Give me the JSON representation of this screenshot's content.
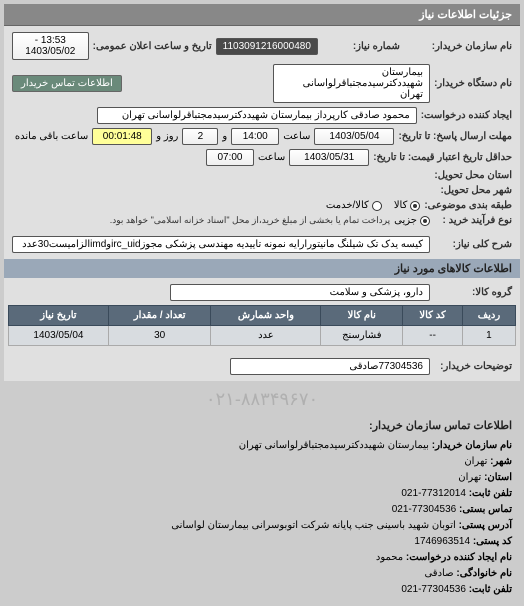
{
  "header": "جزئیات اطلاعات نیاز",
  "fields": {
    "buyer_name_label": "نام سازمان خریدار:",
    "device_name_label": "نام دستگاه خریدار:",
    "creator_label": "ایجاد کننده درخواست:",
    "send_deadline_label": "مهلت ارسال پاسخ: تا تاریخ:",
    "credit_deadline_label": "حداقل تاریخ اعتبار قیمت: تا تاریخ:",
    "delivery_province_label": "استان محل تحویل:",
    "delivery_city_label": "شهر محل تحویل:",
    "category_label": "طبقه بندی موضوعی:",
    "purchase_type_label": "نوع فرآیند خرید :",
    "need_number_label": "شماره نیاز:",
    "need_number": "1103091216000480",
    "public_date_label": "تاریخ و ساعت اعلان عمومی:",
    "public_date": "13:53 - 1403/05/02",
    "device_name": "بیمارستان شهیددکترسیدمجتباقرلواسانی تهران",
    "contact_btn": "اطلاعات تماس خریدار",
    "creator": "محمود صادقی  کارپرداز بیمارستان شهیددکترسیدمجتباقرلواسانی تهران",
    "send_date": "1403/05/04",
    "send_time_label": "ساعت",
    "send_time": "14:00",
    "and_label": "و",
    "days": "2",
    "days_label": "روز و",
    "countdown": "00:01:48",
    "remaining_label": "ساعت باقی مانده",
    "credit_date": "1403/05/31",
    "credit_time": "07:00",
    "goods_radio": "کالا",
    "service_radio": "کالا/خدمت",
    "retail_radio": "جزیی",
    "purchase_note": "پرداخت تمام یا بخشی از مبلغ خرید،از محل \"اسناد خزانه اسلامی\" خواهد بود.",
    "need_title_label": "شرح کلی نیاز:",
    "need_title": "کیسه یدک تک شیلنگ مانیتورارایه نمونه تاییدیه مهندسی پزشکی مجوزirc_uidوimdالزامیست30عدد",
    "goods_info_title": "اطلاعات کالاهای مورد نیاز",
    "goods_group_label": "گروه کالا:",
    "goods_group": "دارو، پزشکی و سلامت"
  },
  "table": {
    "columns": [
      "ردیف",
      "کد کالا",
      "نام کالا",
      "واحد شمارش",
      "تعداد / مقدار",
      "تاریخ نیاز"
    ],
    "rows": [
      [
        "1",
        "--",
        "فشارسنج",
        "عدد",
        "30",
        "1403/05/04"
      ]
    ]
  },
  "buyer_desc_label": "توضیحات خریدار:",
  "buyer_desc": "77304536صادقی",
  "watermark": "۰۲۱-۸۸۳۴۹۶۷۰",
  "contact_title": "اطلاعات تماس سازمان خریدار:",
  "contact": {
    "org_label": "نام سازمان خریدار:",
    "org": "بیمارستان شهیددکترسیدمجتباقرلواسانی تهران",
    "city_label": "شهر:",
    "city": "تهران",
    "province_label": "استان:",
    "province": "تهران",
    "phone_label": "تلفن ثابت:",
    "phone": "77312014-021",
    "fax_label": "تماس بستی:",
    "fax": "77304536-021",
    "address_label": "آدرس پستی:",
    "address": "اتوبان شهید باسینی جنب پایانه شرکت اتوبوسرانی بیمارستان لواسانی",
    "postal_label": "کد پستی:",
    "postal": "1746963514",
    "creator_name_label": "نام ایجاد کننده درخواست:",
    "creator_name": "محمود",
    "family_label": "نام خانوادگی:",
    "family": "صادقی",
    "phone2_label": "تلفن ثابت:",
    "phone2": "77304536-021"
  },
  "colors": {
    "header_bg": "#888888",
    "section_bg": "#9aa8b8",
    "th_bg": "#5a6a7a",
    "td_bg": "#d8dce0"
  }
}
